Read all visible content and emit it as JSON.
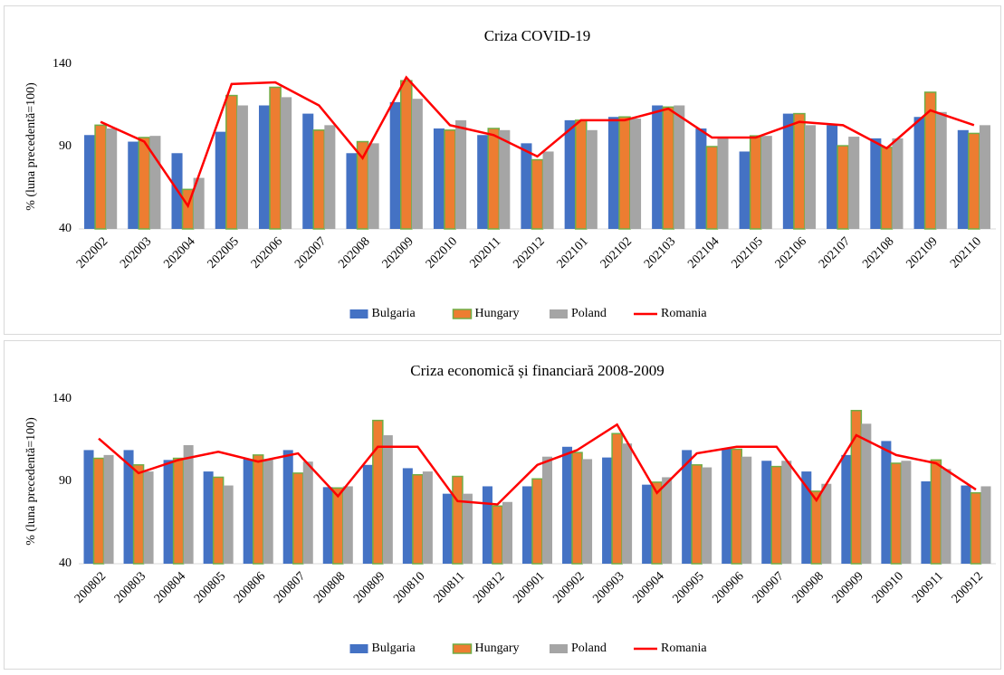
{
  "chart_data": [
    {
      "type": "bar",
      "title": "Criza COVID-19",
      "y_label": "% (luna precedentă=100)",
      "categories": [
        "202002",
        "202003",
        "202004",
        "202005",
        "202006",
        "202007",
        "202008",
        "202009",
        "202010",
        "202011",
        "202012",
        "202101",
        "202102",
        "202103",
        "202104",
        "202105",
        "202106",
        "202107",
        "202108",
        "202109",
        "202110"
      ],
      "ylim": [
        40,
        140
      ],
      "yticks": [
        40,
        90,
        140
      ],
      "grid": false,
      "series": [
        {
          "name": "Bulgaria",
          "color": "#4472c4",
          "values": [
            97,
            93,
            86,
            99,
            115,
            110,
            86,
            117,
            101,
            97,
            92,
            106,
            108,
            115,
            101,
            87,
            110,
            103,
            95,
            108,
            100
          ]
        },
        {
          "name": "Hungary",
          "color": "#ed7d31",
          "edgecolor": "#70ad47",
          "values": [
            103,
            95.5,
            64,
            121,
            126,
            100,
            93,
            130,
            100,
            101,
            82,
            106,
            108,
            114,
            90,
            96.5,
            110,
            90.5,
            89.5,
            123,
            98
          ]
        },
        {
          "name": "Poland",
          "color": "#a5a5a5",
          "values": [
            101,
            96.5,
            71,
            115,
            120,
            103,
            92,
            119,
            106,
            100,
            87,
            100,
            107,
            115,
            95.5,
            96.5,
            103,
            96,
            95,
            111,
            103
          ]
        },
        {
          "name": "Romania",
          "type": "line",
          "color": "#ff0000",
          "values": [
            105,
            93,
            54,
            128,
            129,
            115,
            83,
            132,
            103,
            97,
            84,
            106,
            106,
            113,
            95.5,
            95.5,
            105,
            103,
            89,
            112,
            103
          ]
        }
      ]
    },
    {
      "type": "bar",
      "title": "Criza economică și financiară 2008-2009",
      "y_label": "% (luna precedentă=100)",
      "categories": [
        "200802",
        "200803",
        "200804",
        "200805",
        "200806",
        "200807",
        "200808",
        "200809",
        "200810",
        "200811",
        "200812",
        "200901",
        "200902",
        "200903",
        "200904",
        "200905",
        "200906",
        "200907",
        "200908",
        "200909",
        "200910",
        "200911",
        "200912"
      ],
      "ylim": [
        40,
        140
      ],
      "yticks": [
        40,
        90,
        140
      ],
      "grid": false,
      "series": [
        {
          "name": "Bulgaria",
          "color": "#4472c4",
          "values": [
            109,
            109,
            103,
            96,
            103.5,
            109,
            86.5,
            100,
            98,
            82.5,
            87,
            87,
            111,
            104.5,
            88,
            109,
            110,
            102.5,
            96,
            106,
            114.5,
            90,
            87.5
          ]
        },
        {
          "name": "Hungary",
          "color": "#ed7d31",
          "edgecolor": "#70ad47",
          "values": [
            104,
            100,
            104,
            92.5,
            106,
            95,
            86,
            127,
            94,
            93,
            75,
            91.5,
            107.5,
            119,
            89.5,
            100,
            109.5,
            99,
            84,
            133,
            101,
            103,
            83
          ]
        },
        {
          "name": "Poland",
          "color": "#a5a5a5",
          "values": [
            106,
            96,
            112,
            87.5,
            103.5,
            102,
            87,
            118,
            96,
            82.5,
            77.5,
            105,
            103.5,
            113,
            92.5,
            98.5,
            105,
            102.5,
            88.5,
            125,
            102.5,
            97.5,
            87
          ]
        },
        {
          "name": "Romania",
          "type": "line",
          "color": "#ff0000",
          "values": [
            116,
            95,
            103,
            108,
            102,
            107,
            81,
            111,
            111,
            78,
            76,
            100,
            109,
            124.5,
            83,
            107,
            111,
            111,
            78.5,
            118,
            106,
            101,
            85
          ]
        }
      ]
    }
  ]
}
